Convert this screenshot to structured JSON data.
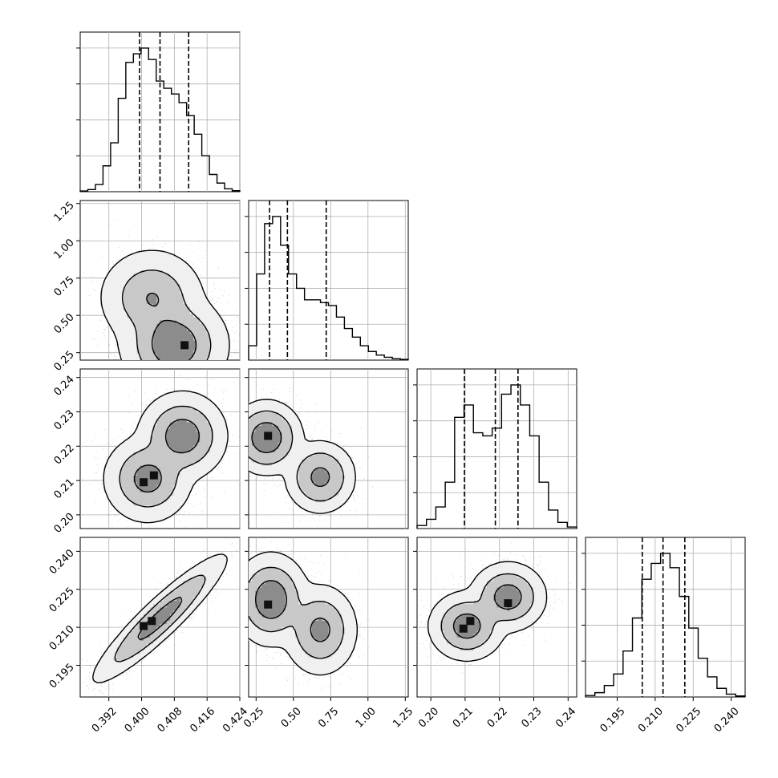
{
  "chart_data": {
    "type": "corner",
    "grid": true,
    "params": [
      {
        "range": [
          0.385,
          0.424
        ],
        "ticks": [
          "0.392",
          "0.400",
          "0.408",
          "0.416",
          "0.424"
        ],
        "quantiles": [
          0.3995,
          0.4045,
          0.4115
        ],
        "hist": [
          0.005,
          0.015,
          0.05,
          0.18,
          0.34,
          0.65,
          0.9,
          0.96,
          1.0,
          0.92,
          0.77,
          0.72,
          0.68,
          0.62,
          0.53,
          0.4,
          0.25,
          0.12,
          0.06,
          0.02,
          0.007
        ]
      },
      {
        "range": [
          0.2,
          1.27
        ],
        "ticks": [
          "0.25",
          "0.50",
          "0.75",
          "1.00",
          "1.25"
        ],
        "quantiles": [
          0.34,
          0.46,
          0.72
        ],
        "hist": [
          0.1,
          0.6,
          0.95,
          1.0,
          0.8,
          0.6,
          0.5,
          0.42,
          0.42,
          0.4,
          0.38,
          0.3,
          0.22,
          0.16,
          0.1,
          0.06,
          0.035,
          0.02,
          0.01,
          0.005
        ]
      },
      {
        "range": [
          0.196,
          0.2425
        ],
        "ticks": [
          "0.20",
          "0.21",
          "0.22",
          "0.23",
          "0.24"
        ],
        "quantiles": [
          0.2098,
          0.2188,
          0.2254
        ],
        "hist": [
          0.02,
          0.06,
          0.14,
          0.3,
          0.72,
          0.8,
          0.62,
          0.6,
          0.65,
          0.87,
          0.93,
          0.8,
          0.6,
          0.3,
          0.12,
          0.04,
          0.01
        ]
      },
      {
        "range": [
          0.1825,
          0.2455
        ],
        "ticks": [
          "0.195",
          "0.210",
          "0.225",
          "0.240"
        ],
        "quantiles": [
          0.2049,
          0.2131,
          0.2217
        ],
        "hist": [
          0.01,
          0.03,
          0.08,
          0.16,
          0.32,
          0.55,
          0.82,
          0.93,
          1.0,
          0.9,
          0.7,
          0.48,
          0.27,
          0.14,
          0.06,
          0.02,
          0.007
        ]
      }
    ],
    "pairs": [
      {
        "row": 1,
        "col": 0,
        "sx": 0.0047,
        "sy": 0.12,
        "modes": [
          [
            0.4025,
            0.62,
            0.35
          ],
          [
            0.408,
            0.3,
            0.65
          ]
        ],
        "peaks": [
          [
            0.4105,
            0.3
          ]
        ]
      },
      {
        "row": 2,
        "col": 0,
        "sx": 0.0038,
        "sy": 0.0045,
        "modes": [
          [
            0.4015,
            0.2105,
            0.45
          ],
          [
            0.41,
            0.223,
            0.55
          ]
        ],
        "peaks": [
          [
            0.4005,
            0.2095
          ],
          [
            0.403,
            0.2115
          ]
        ]
      },
      {
        "row": 2,
        "col": 1,
        "sx": 0.085,
        "sy": 0.0038,
        "modes": [
          [
            0.32,
            0.2225,
            0.6
          ],
          [
            0.68,
            0.211,
            0.4
          ]
        ],
        "peaks": [
          [
            0.33,
            0.223
          ]
        ]
      },
      {
        "row": 3,
        "col": 0,
        "rho": 0.92,
        "sx": 0.0055,
        "sy": 0.0085,
        "modes": [
          [
            0.4045,
            0.2135,
            1.0
          ]
        ],
        "peaks": [
          [
            0.4005,
            0.2105
          ],
          [
            0.4025,
            0.2125
          ]
        ]
      },
      {
        "row": 3,
        "col": 1,
        "sx": 0.09,
        "sy": 0.0065,
        "modes": [
          [
            0.35,
            0.221,
            0.6
          ],
          [
            0.68,
            0.209,
            0.4
          ]
        ],
        "peaks": [
          [
            0.33,
            0.219
          ]
        ]
      },
      {
        "row": 3,
        "col": 2,
        "sx": 0.0039,
        "sy": 0.0048,
        "modes": [
          [
            0.2105,
            0.2105,
            0.5
          ],
          [
            0.2225,
            0.222,
            0.5
          ]
        ],
        "peaks": [
          [
            0.2095,
            0.2095
          ],
          [
            0.2115,
            0.2125
          ],
          [
            0.2225,
            0.2195
          ]
        ]
      }
    ]
  }
}
